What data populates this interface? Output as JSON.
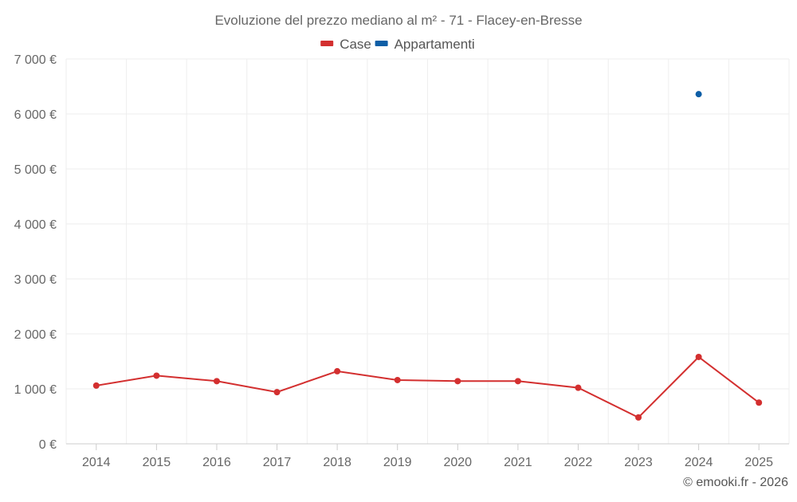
{
  "chart_data": {
    "type": "line",
    "title": "Evoluzione del prezzo mediano al m² - 71 - Flacey-en-Bresse",
    "xlabel": "",
    "ylabel": "",
    "categories": [
      "2014",
      "2015",
      "2016",
      "2017",
      "2018",
      "2019",
      "2020",
      "2021",
      "2022",
      "2023",
      "2024",
      "2025"
    ],
    "y_ticks": [
      "0 €",
      "1 000 €",
      "2 000 €",
      "3 000 €",
      "4 000 €",
      "5 000 €",
      "6 000 €",
      "7 000 €"
    ],
    "ylim": [
      0,
      7000
    ],
    "grid": true,
    "legend_position": "top",
    "series": [
      {
        "name": "Case",
        "color": "#d32f2f",
        "values": [
          1060,
          1240,
          1140,
          940,
          1320,
          1160,
          1140,
          1140,
          1020,
          480,
          1580,
          750
        ]
      },
      {
        "name": "Appartamenti",
        "color": "#0d5ea6",
        "values": [
          null,
          null,
          null,
          null,
          null,
          null,
          null,
          null,
          null,
          null,
          6360,
          null
        ]
      }
    ],
    "credit": "© emooki.fr - 2026"
  }
}
